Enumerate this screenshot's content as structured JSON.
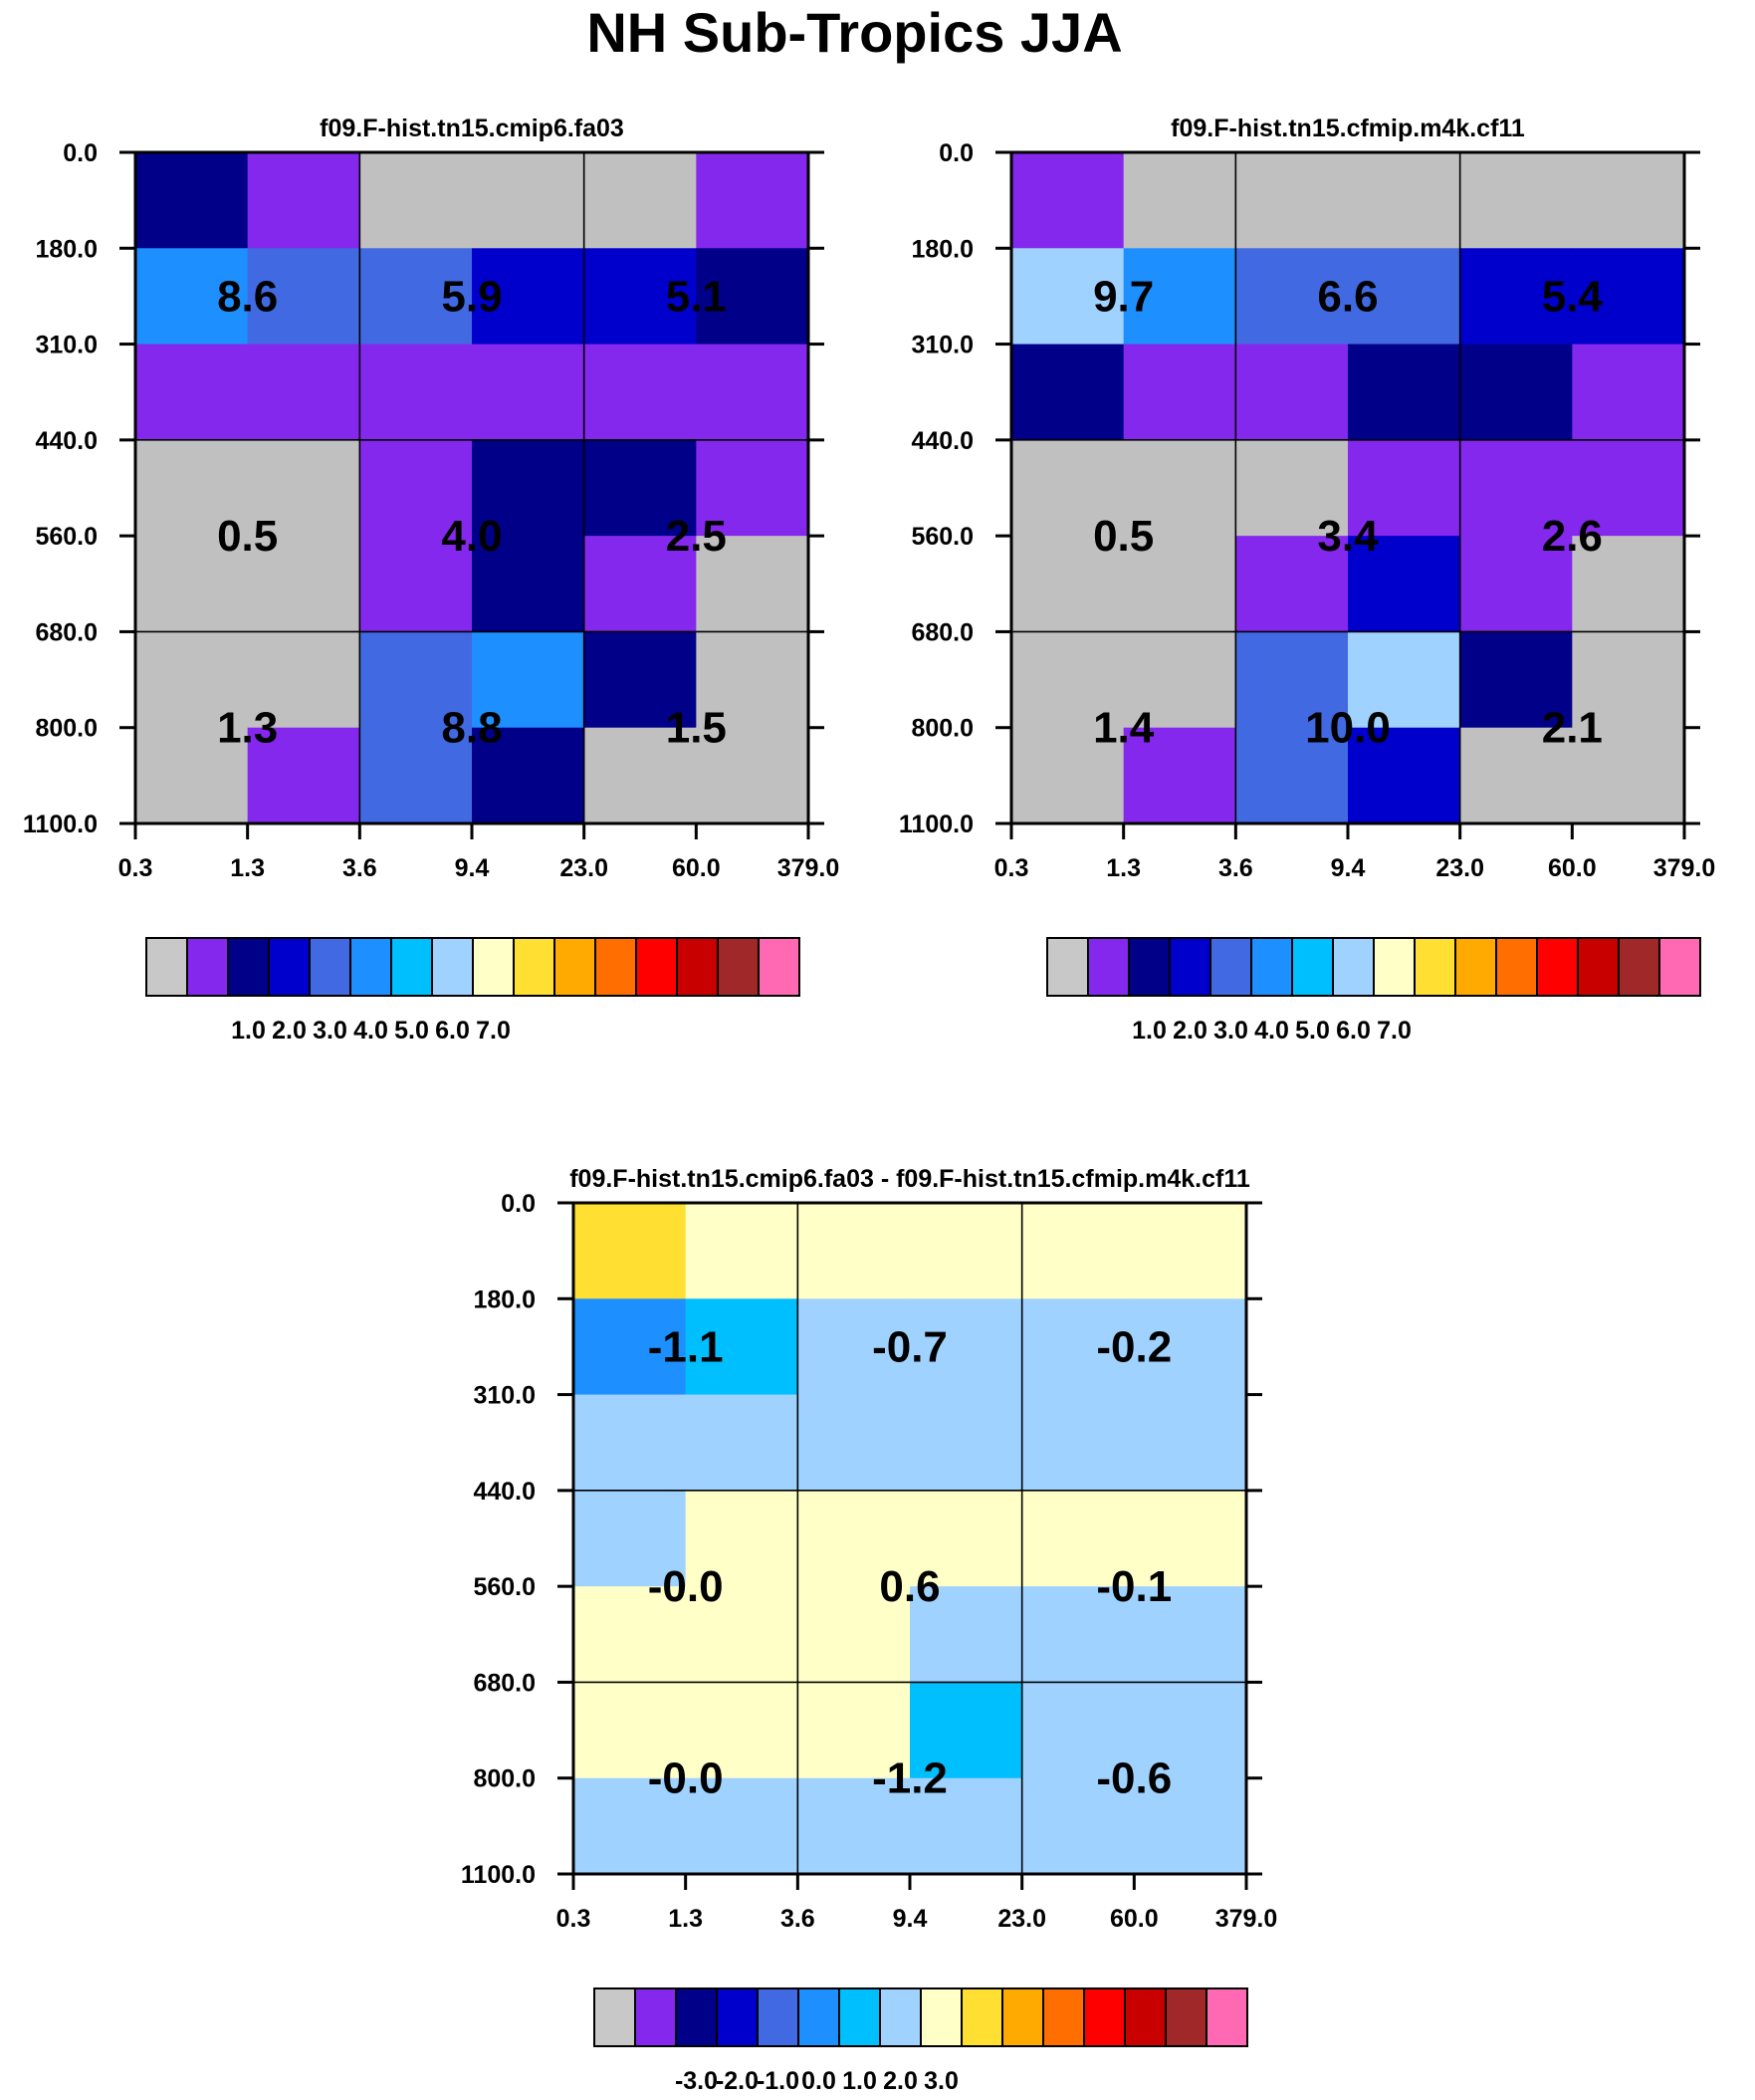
{
  "title": "NH Sub-Tropics JJA",
  "chart_data": [
    {
      "type": "heatmap",
      "title": "f09.F-hist.tn15.cmip6.fa03",
      "x_ticks": [
        "0.3",
        "1.3",
        "3.6",
        "9.4",
        "23.0",
        "60.0",
        "379.0"
      ],
      "y_ticks": [
        "0.0",
        "180.0",
        "310.0",
        "440.0",
        "560.0",
        "680.0",
        "800.0",
        "1100.0"
      ],
      "cell_colors": [
        [
          "#000088",
          "#8528EE",
          "#C0C0C0",
          "#C0C0C0",
          "#C0C0C0",
          "#8528EE"
        ],
        [
          "#1E8FFF",
          "#4169E1",
          "#4169E1",
          "#0000CD",
          "#0000CD",
          "#000088"
        ],
        [
          "#8528EE",
          "#8528EE",
          "#8528EE",
          "#8528EE",
          "#8528EE",
          "#8528EE"
        ],
        [
          "#C0C0C0",
          "#C0C0C0",
          "#8528EE",
          "#000088",
          "#000088",
          "#8528EE"
        ],
        [
          "#C0C0C0",
          "#C0C0C0",
          "#8528EE",
          "#000088",
          "#8528EE",
          "#C0C0C0"
        ],
        [
          "#C0C0C0",
          "#C0C0C0",
          "#4169E1",
          "#1E8FFF",
          "#000088",
          "#C0C0C0"
        ],
        [
          "#C0C0C0",
          "#8528EE",
          "#4169E1",
          "#000088",
          "#C0C0C0",
          "#C0C0C0"
        ]
      ],
      "box_values": [
        [
          "8.6",
          "5.9",
          "5.1"
        ],
        [
          "0.5",
          "4.0",
          "2.5"
        ],
        [
          "1.3",
          "8.8",
          "1.5"
        ]
      ],
      "colorbar": {
        "colors": [
          "#C8C8C8",
          "#8528EE",
          "#000088",
          "#0000CD",
          "#4169E1",
          "#1E8FFF",
          "#00BFFF",
          "#A0D2FF",
          "#FFFFC8",
          "#FFE032",
          "#FFAA00",
          "#FF6E00",
          "#FF0000",
          "#C80000",
          "#A02828",
          "#FF69B4"
        ],
        "labels": [
          "1.0",
          "2.0",
          "3.0",
          "4.0",
          "5.0",
          "6.0",
          "7.0"
        ]
      }
    },
    {
      "type": "heatmap",
      "title": "f09.F-hist.tn15.cfmip.m4k.cf11",
      "x_ticks": [
        "0.3",
        "1.3",
        "3.6",
        "9.4",
        "23.0",
        "60.0",
        "379.0"
      ],
      "y_ticks": [
        "0.0",
        "180.0",
        "310.0",
        "440.0",
        "560.0",
        "680.0",
        "800.0",
        "1100.0"
      ],
      "cell_colors": [
        [
          "#8528EE",
          "#C0C0C0",
          "#C0C0C0",
          "#C0C0C0",
          "#C0C0C0",
          "#C0C0C0"
        ],
        [
          "#A0D2FF",
          "#1E8FFF",
          "#4169E1",
          "#4169E1",
          "#0000CD",
          "#0000CD"
        ],
        [
          "#000088",
          "#8528EE",
          "#8528EE",
          "#000088",
          "#000088",
          "#8528EE"
        ],
        [
          "#C0C0C0",
          "#C0C0C0",
          "#C0C0C0",
          "#8528EE",
          "#8528EE",
          "#8528EE"
        ],
        [
          "#C0C0C0",
          "#C0C0C0",
          "#8528EE",
          "#0000CD",
          "#8528EE",
          "#C0C0C0"
        ],
        [
          "#C0C0C0",
          "#C0C0C0",
          "#4169E1",
          "#A0D2FF",
          "#000088",
          "#C0C0C0"
        ],
        [
          "#C0C0C0",
          "#8528EE",
          "#4169E1",
          "#0000CD",
          "#C0C0C0",
          "#C0C0C0"
        ]
      ],
      "box_values": [
        [
          "9.7",
          "6.6",
          "5.4"
        ],
        [
          "0.5",
          "3.4",
          "2.6"
        ],
        [
          "1.4",
          "10.0",
          "2.1"
        ]
      ],
      "colorbar": {
        "colors": [
          "#C8C8C8",
          "#8528EE",
          "#000088",
          "#0000CD",
          "#4169E1",
          "#1E8FFF",
          "#00BFFF",
          "#A0D2FF",
          "#FFFFC8",
          "#FFE032",
          "#FFAA00",
          "#FF6E00",
          "#FF0000",
          "#C80000",
          "#A02828",
          "#FF69B4"
        ],
        "labels": [
          "1.0",
          "2.0",
          "3.0",
          "4.0",
          "5.0",
          "6.0",
          "7.0"
        ]
      }
    },
    {
      "type": "heatmap",
      "title": "f09.F-hist.tn15.cmip6.fa03 - f09.F-hist.tn15.cfmip.m4k.cf11",
      "x_ticks": [
        "0.3",
        "1.3",
        "3.6",
        "9.4",
        "23.0",
        "60.0",
        "379.0"
      ],
      "y_ticks": [
        "0.0",
        "180.0",
        "310.0",
        "440.0",
        "560.0",
        "680.0",
        "800.0",
        "1100.0"
      ],
      "cell_colors": [
        [
          "#FFE032",
          "#FFFFC8",
          "#FFFFC8",
          "#FFFFC8",
          "#FFFFC8",
          "#FFFFC8"
        ],
        [
          "#1E8FFF",
          "#00BFFF",
          "#A0D2FF",
          "#A0D2FF",
          "#A0D2FF",
          "#A0D2FF"
        ],
        [
          "#A0D2FF",
          "#A0D2FF",
          "#A0D2FF",
          "#A0D2FF",
          "#A0D2FF",
          "#A0D2FF"
        ],
        [
          "#A0D2FF",
          "#FFFFC8",
          "#FFFFC8",
          "#FFFFC8",
          "#FFFFC8",
          "#FFFFC8"
        ],
        [
          "#FFFFC8",
          "#FFFFC8",
          "#FFFFC8",
          "#A0D2FF",
          "#A0D2FF",
          "#A0D2FF"
        ],
        [
          "#FFFFC8",
          "#FFFFC8",
          "#FFFFC8",
          "#00BFFF",
          "#A0D2FF",
          "#A0D2FF"
        ],
        [
          "#A0D2FF",
          "#A0D2FF",
          "#A0D2FF",
          "#A0D2FF",
          "#A0D2FF",
          "#A0D2FF"
        ]
      ],
      "box_values": [
        [
          "-1.1",
          "-0.7",
          "-0.2"
        ],
        [
          "-0.0",
          "0.6",
          "-0.1"
        ],
        [
          "-0.0",
          "-1.2",
          "-0.6"
        ]
      ],
      "colorbar": {
        "colors": [
          "#C8C8C8",
          "#8528EE",
          "#000088",
          "#0000CD",
          "#4169E1",
          "#1E8FFF",
          "#00BFFF",
          "#A0D2FF",
          "#FFFFC8",
          "#FFE032",
          "#FFAA00",
          "#FF6E00",
          "#FF0000",
          "#C80000",
          "#A02828",
          "#FF69B4"
        ],
        "labels": [
          "-3.0",
          "-2.0",
          "-1.0",
          "0.0",
          "1.0",
          "2.0",
          "3.0"
        ]
      }
    }
  ]
}
